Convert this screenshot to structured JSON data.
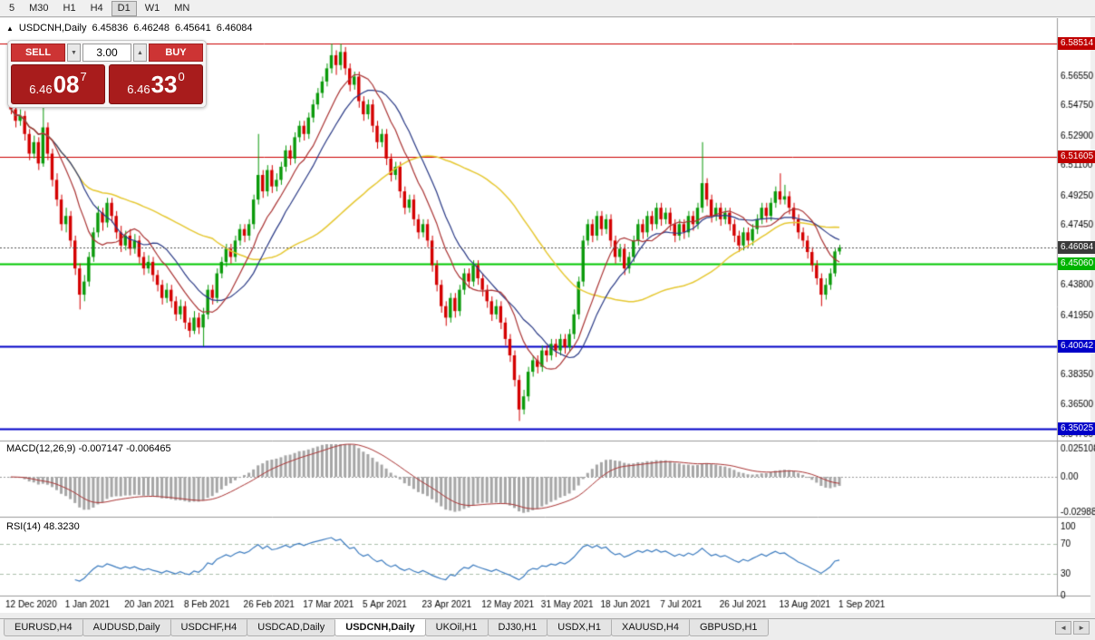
{
  "toolbar": {
    "timeframes": [
      "5",
      "M30",
      "H1",
      "H4",
      "D1",
      "W1",
      "MN"
    ],
    "active": "D1"
  },
  "chart_header": {
    "icon": "▲",
    "symbol": "USDCNH,Daily",
    "open": "6.45836",
    "high": "6.46248",
    "low": "6.45641",
    "close": "6.46084"
  },
  "trade_panel": {
    "sell_label": "SELL",
    "buy_label": "BUY",
    "volume": "3.00",
    "down_icon": "▼",
    "up_icon": "▲",
    "sell_price": {
      "prefix": "6.46",
      "big": "08",
      "sup": "7"
    },
    "buy_price": {
      "prefix": "6.46",
      "big": "33",
      "sup": "0"
    },
    "button_color": "#cd3434",
    "price_panel_color": "#a81c1c"
  },
  "tabs": {
    "items": [
      "EURUSD,H4",
      "AUDUSD,Daily",
      "USDCHF,H4",
      "USDCAD,Daily",
      "USDCNH,Daily",
      "UKOil,H1",
      "DJ30,H1",
      "USDX,H1",
      "XAUUSD,H4",
      "GBPUSD,H1"
    ],
    "active_index": 4,
    "scroll_left_icon": "◄",
    "scroll_right_icon": "►"
  },
  "chart_data": {
    "type": "candlestick",
    "symbol": "USDCNH",
    "timeframe": "Daily",
    "title": "USDCNH,Daily",
    "price_scale": {
      "min": 6.3436,
      "max": 6.5962
    },
    "y_axis_ticks": [
      "6.56550",
      "6.54750",
      "6.52900",
      "6.51100",
      "6.49250",
      "6.47450",
      "6.43800",
      "6.41950",
      "6.38350",
      "6.36500",
      "6.34700"
    ],
    "x_labels": [
      "12 Dec 2020",
      "1 Jan 2021",
      "20 Jan 2021",
      "8 Feb 2021",
      "26 Feb 2021",
      "17 Mar 2021",
      "5 Apr 2021",
      "23 Apr 2021",
      "12 May 2021",
      "31 May 2021",
      "18 Jun 2021",
      "7 Jul 2021",
      "26 Jul 2021",
      "13 Aug 2021",
      "1 Sep 2021"
    ],
    "candles_per_label": 13,
    "colors": {
      "up": "#0a9a0a",
      "down": "#d40000",
      "background": "#ffffff",
      "axis_text": "#000000"
    },
    "hlines": [
      {
        "value": 6.58514,
        "label": "6.58514",
        "color": "#cc0000",
        "badge_color": "#c00000",
        "width": 1
      },
      {
        "value": 6.51605,
        "label": "6.51605",
        "color": "#cc0000",
        "badge_color": "#c00000",
        "width": 1
      },
      {
        "value": 6.4506,
        "label": "6.45060",
        "color": "#00c800",
        "badge_color": "#00b400",
        "width": 2
      },
      {
        "value": 6.40042,
        "label": "6.40042",
        "color": "#0000c8",
        "badge_color": "#0000c8",
        "width": 2
      },
      {
        "value": 6.35025,
        "label": "6.35025",
        "color": "#0000c8",
        "badge_color": "#0000c8",
        "width": 2
      }
    ],
    "current_price": {
      "value": 6.46084,
      "label": "6.46084",
      "badge_color": "#3a3a3a"
    },
    "moving_averages": [
      {
        "period": 45,
        "color": "#e6c832",
        "width": 1.5
      },
      {
        "period": 16,
        "color": "#2a3a86",
        "width": 1.2
      },
      {
        "period": 10,
        "color": "#aa3333",
        "width": 1.2
      }
    ],
    "indicators": [
      {
        "name": "MACD",
        "label": "MACD(12,26,9) -0.007147 -0.006465",
        "params": [
          12,
          26,
          9
        ],
        "main_value": "-0.007147",
        "signal_value": "-0.006465",
        "axis_max_label": "0.025108",
        "axis_zero_label": "0.00",
        "axis_min_label": "-0.029883",
        "scale": {
          "max": 0.025108,
          "min": -0.029883
        },
        "histogram_color": "#a6a6a6",
        "signal_color": "#aa3333"
      },
      {
        "name": "RSI",
        "label": "RSI(14) 48.3230",
        "period": 14,
        "value": "48.3230",
        "levels": [
          70,
          30
        ],
        "axis_labels": [
          "100",
          "70",
          "30",
          "0"
        ],
        "line_color": "#3b7bbf",
        "level_color": "#aabfaa"
      }
    ],
    "candles": [
      [
        6.548,
        6.552,
        6.542,
        6.545
      ],
      [
        6.545,
        6.548,
        6.534,
        6.538
      ],
      [
        6.538,
        6.545,
        6.535,
        6.541
      ],
      [
        6.541,
        6.544,
        6.526,
        6.53
      ],
      [
        6.53,
        6.533,
        6.514,
        6.518
      ],
      [
        6.518,
        6.529,
        6.515,
        6.525
      ],
      [
        6.525,
        6.528,
        6.508,
        6.512
      ],
      [
        6.512,
        6.551,
        6.51,
        6.534
      ],
      [
        6.534,
        6.537,
        6.514,
        6.518
      ],
      [
        6.518,
        6.521,
        6.498,
        6.502
      ],
      [
        6.502,
        6.506,
        6.486,
        6.49
      ],
      [
        6.49,
        6.493,
        6.471,
        6.475
      ],
      [
        6.475,
        6.485,
        6.47,
        6.48
      ],
      [
        6.48,
        6.483,
        6.461,
        6.465
      ],
      [
        6.465,
        6.468,
        6.444,
        6.448
      ],
      [
        6.448,
        6.451,
        6.423,
        6.432
      ],
      [
        6.432,
        6.444,
        6.428,
        6.44
      ],
      [
        6.44,
        6.458,
        6.437,
        6.455
      ],
      [
        6.455,
        6.473,
        6.452,
        6.47
      ],
      [
        6.47,
        6.486,
        6.467,
        6.482
      ],
      [
        6.482,
        6.485,
        6.471,
        6.476
      ],
      [
        6.476,
        6.491,
        6.473,
        6.488
      ],
      [
        6.488,
        6.491,
        6.476,
        6.48
      ],
      [
        6.48,
        6.483,
        6.466,
        6.47
      ],
      [
        6.47,
        6.474,
        6.458,
        6.462
      ],
      [
        6.462,
        6.471,
        6.459,
        6.468
      ],
      [
        6.468,
        6.472,
        6.456,
        6.46
      ],
      [
        6.46,
        6.469,
        6.457,
        6.465
      ],
      [
        6.465,
        6.468,
        6.451,
        6.455
      ],
      [
        6.455,
        6.458,
        6.444,
        6.448
      ],
      [
        6.448,
        6.456,
        6.445,
        6.452
      ],
      [
        6.452,
        6.455,
        6.44,
        6.444
      ],
      [
        6.444,
        6.447,
        6.434,
        6.438
      ],
      [
        6.438,
        6.441,
        6.426,
        6.43
      ],
      [
        6.43,
        6.439,
        6.427,
        6.435
      ],
      [
        6.435,
        6.438,
        6.424,
        6.428
      ],
      [
        6.428,
        6.431,
        6.416,
        6.42
      ],
      [
        6.42,
        6.429,
        6.417,
        6.425
      ],
      [
        6.425,
        6.428,
        6.411,
        6.415
      ],
      [
        6.415,
        6.418,
        6.406,
        6.41
      ],
      [
        6.41,
        6.422,
        6.408,
        6.418
      ],
      [
        6.418,
        6.421,
        6.408,
        6.412
      ],
      [
        6.412,
        6.424,
        6.4005,
        6.42
      ],
      [
        6.42,
        6.438,
        6.417,
        6.435
      ],
      [
        6.435,
        6.438,
        6.426,
        6.43
      ],
      [
        6.43,
        6.448,
        6.427,
        6.445
      ],
      [
        6.445,
        6.455,
        6.442,
        6.452
      ],
      [
        6.452,
        6.463,
        6.449,
        6.46
      ],
      [
        6.46,
        6.463,
        6.451,
        6.455
      ],
      [
        6.455,
        6.468,
        6.452,
        6.465
      ],
      [
        6.465,
        6.475,
        6.462,
        6.472
      ],
      [
        6.472,
        6.475,
        6.464,
        6.468
      ],
      [
        6.468,
        6.478,
        6.465,
        6.475
      ],
      [
        6.475,
        6.493,
        6.472,
        6.49
      ],
      [
        6.49,
        6.53,
        6.487,
        6.505
      ],
      [
        6.505,
        6.508,
        6.491,
        6.495
      ],
      [
        6.495,
        6.511,
        6.492,
        6.508
      ],
      [
        6.508,
        6.511,
        6.494,
        6.498
      ],
      [
        6.498,
        6.506,
        6.495,
        6.502
      ],
      [
        6.502,
        6.513,
        6.499,
        6.51
      ],
      [
        6.51,
        6.523,
        6.507,
        6.52
      ],
      [
        6.52,
        6.523,
        6.511,
        6.515
      ],
      [
        6.515,
        6.531,
        6.512,
        6.528
      ],
      [
        6.528,
        6.538,
        6.525,
        6.535
      ],
      [
        6.535,
        6.538,
        6.526,
        6.53
      ],
      [
        6.53,
        6.543,
        6.527,
        6.54
      ],
      [
        6.54,
        6.551,
        6.537,
        6.548
      ],
      [
        6.548,
        6.558,
        6.545,
        6.555
      ],
      [
        6.555,
        6.565,
        6.552,
        6.562
      ],
      [
        6.562,
        6.573,
        6.559,
        6.57
      ],
      [
        6.57,
        6.5851,
        6.567,
        6.578
      ],
      [
        6.578,
        6.581,
        6.566,
        6.572
      ],
      [
        6.572,
        6.585,
        6.569,
        6.58
      ],
      [
        6.58,
        6.583,
        6.566,
        6.57
      ],
      [
        6.57,
        6.573,
        6.556,
        6.56
      ],
      [
        6.56,
        6.568,
        6.557,
        6.565
      ],
      [
        6.565,
        6.568,
        6.546,
        6.55
      ],
      [
        6.55,
        6.553,
        6.538,
        6.542
      ],
      [
        6.542,
        6.551,
        6.539,
        6.548
      ],
      [
        6.548,
        6.551,
        6.531,
        6.535
      ],
      [
        6.535,
        6.538,
        6.521,
        6.525
      ],
      [
        6.525,
        6.533,
        6.522,
        6.53
      ],
      [
        6.53,
        6.533,
        6.511,
        6.515
      ],
      [
        6.515,
        6.518,
        6.501,
        6.505
      ],
      [
        6.505,
        6.513,
        6.502,
        6.51
      ],
      [
        6.51,
        6.513,
        6.491,
        6.495
      ],
      [
        6.495,
        6.498,
        6.481,
        6.485
      ],
      [
        6.485,
        6.493,
        6.482,
        6.49
      ],
      [
        6.49,
        6.493,
        6.474,
        6.478
      ],
      [
        6.478,
        6.481,
        6.466,
        6.47
      ],
      [
        6.47,
        6.478,
        6.467,
        6.475
      ],
      [
        6.475,
        6.478,
        6.461,
        6.465
      ],
      [
        6.465,
        6.468,
        6.446,
        6.45
      ],
      [
        6.45,
        6.453,
        6.434,
        6.438
      ],
      [
        6.438,
        6.441,
        6.421,
        6.425
      ],
      [
        6.425,
        6.428,
        6.413,
        6.418
      ],
      [
        6.418,
        6.433,
        6.415,
        6.43
      ],
      [
        6.43,
        6.433,
        6.418,
        6.422
      ],
      [
        6.422,
        6.438,
        6.419,
        6.435
      ],
      [
        6.435,
        6.448,
        6.432,
        6.445
      ],
      [
        6.445,
        6.448,
        6.436,
        6.44
      ],
      [
        6.44,
        6.453,
        6.437,
        6.45
      ],
      [
        6.45,
        6.453,
        6.438,
        6.442
      ],
      [
        6.442,
        6.445,
        6.431,
        6.435
      ],
      [
        6.435,
        6.438,
        6.424,
        6.428
      ],
      [
        6.428,
        6.431,
        6.416,
        6.42
      ],
      [
        6.42,
        6.429,
        6.417,
        6.425
      ],
      [
        6.425,
        6.428,
        6.411,
        6.415
      ],
      [
        6.415,
        6.418,
        6.401,
        6.405
      ],
      [
        6.405,
        6.408,
        6.391,
        6.395
      ],
      [
        6.395,
        6.398,
        6.376,
        6.38
      ],
      [
        6.38,
        6.383,
        6.355,
        6.362
      ],
      [
        6.362,
        6.374,
        6.359,
        6.37
      ],
      [
        6.37,
        6.388,
        6.367,
        6.385
      ],
      [
        6.385,
        6.395,
        6.382,
        6.392
      ],
      [
        6.392,
        6.395,
        6.384,
        6.388
      ],
      [
        6.388,
        6.401,
        6.385,
        6.398
      ],
      [
        6.398,
        6.401,
        6.391,
        6.395
      ],
      [
        6.395,
        6.405,
        6.392,
        6.402
      ],
      [
        6.402,
        6.405,
        6.394,
        6.398
      ],
      [
        6.398,
        6.408,
        6.395,
        6.405
      ],
      [
        6.405,
        6.408,
        6.396,
        6.4
      ],
      [
        6.4,
        6.411,
        6.397,
        6.408
      ],
      [
        6.408,
        6.423,
        6.405,
        6.42
      ],
      [
        6.42,
        6.443,
        6.417,
        6.44
      ],
      [
        6.44,
        6.468,
        6.437,
        6.465
      ],
      [
        6.465,
        6.478,
        6.462,
        6.475
      ],
      [
        6.475,
        6.478,
        6.464,
        6.468
      ],
      [
        6.468,
        6.483,
        6.465,
        6.48
      ],
      [
        6.48,
        6.483,
        6.468,
        6.472
      ],
      [
        6.472,
        6.481,
        6.469,
        6.478
      ],
      [
        6.478,
        6.481,
        6.461,
        6.465
      ],
      [
        6.465,
        6.468,
        6.451,
        6.455
      ],
      [
        6.455,
        6.463,
        6.452,
        6.46
      ],
      [
        6.46,
        6.463,
        6.444,
        6.448
      ],
      [
        6.448,
        6.458,
        6.445,
        6.455
      ],
      [
        6.455,
        6.468,
        6.452,
        6.465
      ],
      [
        6.465,
        6.478,
        6.462,
        6.475
      ],
      [
        6.475,
        6.478,
        6.466,
        6.47
      ],
      [
        6.47,
        6.483,
        6.467,
        6.48
      ],
      [
        6.48,
        6.483,
        6.471,
        6.475
      ],
      [
        6.475,
        6.488,
        6.472,
        6.485
      ],
      [
        6.485,
        6.488,
        6.474,
        6.478
      ],
      [
        6.478,
        6.485,
        6.475,
        6.482
      ],
      [
        6.482,
        6.485,
        6.471,
        6.475
      ],
      [
        6.475,
        6.478,
        6.464,
        6.468
      ],
      [
        6.468,
        6.478,
        6.465,
        6.475
      ],
      [
        6.475,
        6.478,
        6.466,
        6.47
      ],
      [
        6.47,
        6.483,
        6.467,
        6.48
      ],
      [
        6.48,
        6.483,
        6.471,
        6.475
      ],
      [
        6.475,
        6.488,
        6.472,
        6.485
      ],
      [
        6.485,
        6.525,
        6.482,
        6.5
      ],
      [
        6.5,
        6.503,
        6.486,
        6.49
      ],
      [
        6.49,
        6.493,
        6.476,
        6.48
      ],
      [
        6.48,
        6.488,
        6.477,
        6.485
      ],
      [
        6.485,
        6.488,
        6.474,
        6.478
      ],
      [
        6.478,
        6.485,
        6.475,
        6.482
      ],
      [
        6.482,
        6.485,
        6.471,
        6.475
      ],
      [
        6.475,
        6.478,
        6.464,
        6.468
      ],
      [
        6.468,
        6.471,
        6.458,
        6.462
      ],
      [
        6.462,
        6.473,
        6.459,
        6.47
      ],
      [
        6.47,
        6.473,
        6.461,
        6.465
      ],
      [
        6.465,
        6.475,
        6.462,
        6.472
      ],
      [
        6.472,
        6.481,
        6.469,
        6.478
      ],
      [
        6.478,
        6.488,
        6.475,
        6.485
      ],
      [
        6.485,
        6.488,
        6.476,
        6.48
      ],
      [
        6.48,
        6.491,
        6.477,
        6.488
      ],
      [
        6.488,
        6.498,
        6.485,
        6.495
      ],
      [
        6.495,
        6.506,
        6.487,
        6.49
      ],
      [
        6.49,
        6.499,
        6.487,
        6.492
      ],
      [
        6.492,
        6.495,
        6.481,
        6.485
      ],
      [
        6.485,
        6.488,
        6.474,
        6.478
      ],
      [
        6.478,
        6.481,
        6.466,
        6.47
      ],
      [
        6.47,
        6.473,
        6.461,
        6.465
      ],
      [
        6.465,
        6.468,
        6.454,
        6.458
      ],
      [
        6.458,
        6.461,
        6.446,
        6.45
      ],
      [
        6.45,
        6.453,
        6.438,
        6.442
      ],
      [
        6.442,
        6.445,
        6.425,
        6.432
      ],
      [
        6.432,
        6.442,
        6.429,
        6.438
      ],
      [
        6.438,
        6.448,
        6.435,
        6.445
      ],
      [
        6.445,
        6.46,
        6.443,
        6.45836
      ],
      [
        6.45836,
        6.46248,
        6.45641,
        6.46084
      ]
    ]
  }
}
